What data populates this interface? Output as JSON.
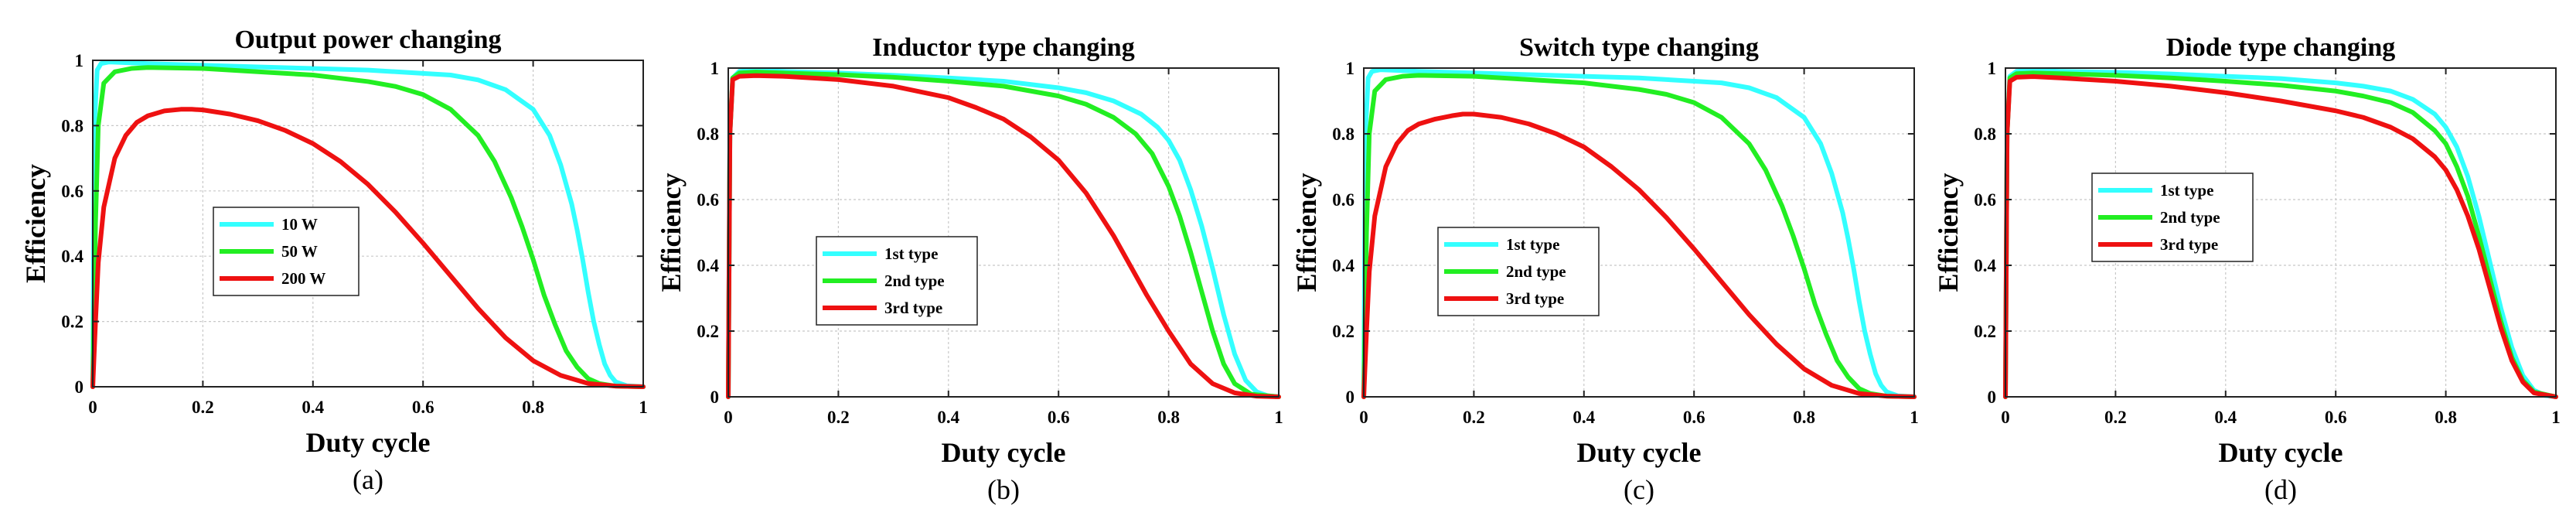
{
  "colors": {
    "cyan": "#33ffff",
    "green": "#22ee22",
    "red": "#ee1111",
    "axis": "#222222",
    "grid": "#c8c8c8"
  },
  "chart_data": [
    {
      "type": "line",
      "title": "Output power changing",
      "xlabel": "Duty cycle",
      "ylabel": "Efficiency",
      "caption": "(a)",
      "xlim": [
        0,
        1
      ],
      "ylim": [
        0,
        1
      ],
      "xticks": [
        0,
        0.2,
        0.4,
        0.6,
        0.8,
        1
      ],
      "xtick_labels": [
        "0",
        "0.2",
        "0.4",
        "0.6",
        "0.8",
        "1"
      ],
      "yticks": [
        0,
        0.2,
        0.4,
        0.6,
        0.8,
        1
      ],
      "ytick_labels": [
        "0",
        "0.2",
        "0.4",
        "0.6",
        "0.8",
        "1"
      ],
      "grid": true,
      "legend_position": "center-left",
      "series": [
        {
          "name": "10 W",
          "color": "cyan",
          "x": [
            0,
            0.003,
            0.008,
            0.015,
            0.03,
            0.06,
            0.1,
            0.2,
            0.3,
            0.4,
            0.5,
            0.6,
            0.65,
            0.7,
            0.75,
            0.8,
            0.83,
            0.85,
            0.87,
            0.88,
            0.89,
            0.9,
            0.91,
            0.92,
            0.93,
            0.94,
            0.95,
            0.97,
            1
          ],
          "y": [
            0,
            0.8,
            0.97,
            0.99,
            0.995,
            0.993,
            0.99,
            0.985,
            0.98,
            0.975,
            0.97,
            0.96,
            0.955,
            0.94,
            0.91,
            0.85,
            0.77,
            0.68,
            0.56,
            0.48,
            0.39,
            0.29,
            0.2,
            0.13,
            0.07,
            0.035,
            0.015,
            0.003,
            0
          ]
        },
        {
          "name": "50 W",
          "color": "green",
          "x": [
            0,
            0.005,
            0.01,
            0.02,
            0.04,
            0.07,
            0.1,
            0.2,
            0.3,
            0.4,
            0.5,
            0.55,
            0.6,
            0.65,
            0.7,
            0.73,
            0.76,
            0.78,
            0.8,
            0.82,
            0.84,
            0.86,
            0.88,
            0.9,
            0.92,
            0.95,
            1
          ],
          "y": [
            0,
            0.5,
            0.8,
            0.93,
            0.965,
            0.975,
            0.978,
            0.975,
            0.965,
            0.955,
            0.935,
            0.92,
            0.895,
            0.85,
            0.77,
            0.69,
            0.58,
            0.49,
            0.39,
            0.28,
            0.19,
            0.11,
            0.06,
            0.025,
            0.01,
            0.002,
            0
          ]
        },
        {
          "name": "200 W",
          "color": "red",
          "x": [
            0,
            0.005,
            0.01,
            0.02,
            0.04,
            0.06,
            0.08,
            0.1,
            0.13,
            0.16,
            0.18,
            0.2,
            0.25,
            0.3,
            0.35,
            0.4,
            0.45,
            0.5,
            0.55,
            0.6,
            0.65,
            0.7,
            0.75,
            0.8,
            0.85,
            0.9,
            0.95,
            1
          ],
          "y": [
            0,
            0.2,
            0.38,
            0.55,
            0.7,
            0.77,
            0.81,
            0.83,
            0.845,
            0.85,
            0.85,
            0.848,
            0.835,
            0.815,
            0.785,
            0.745,
            0.69,
            0.62,
            0.535,
            0.44,
            0.34,
            0.24,
            0.15,
            0.08,
            0.035,
            0.01,
            0.002,
            0
          ]
        }
      ]
    },
    {
      "type": "line",
      "title": "Inductor type changing",
      "xlabel": "Duty cycle",
      "ylabel": "Efficiency",
      "caption": "(b)",
      "xlim": [
        0,
        1
      ],
      "ylim": [
        0,
        1
      ],
      "xticks": [
        0,
        0.2,
        0.4,
        0.6,
        0.8,
        1
      ],
      "xtick_labels": [
        "0",
        "0.2",
        "0.4",
        "0.6",
        "0.8",
        "1"
      ],
      "yticks": [
        0,
        0.2,
        0.4,
        0.6,
        0.8,
        1
      ],
      "ytick_labels": [
        "0",
        "0.2",
        "0.4",
        "0.6",
        "0.8",
        "1"
      ],
      "grid": true,
      "legend_position": "center-left",
      "series": [
        {
          "name": "1st type",
          "color": "cyan",
          "x": [
            0,
            0.003,
            0.008,
            0.02,
            0.05,
            0.1,
            0.2,
            0.3,
            0.4,
            0.5,
            0.6,
            0.65,
            0.7,
            0.75,
            0.78,
            0.8,
            0.82,
            0.84,
            0.86,
            0.88,
            0.9,
            0.92,
            0.94,
            0.96,
            0.98,
            1
          ],
          "y": [
            0,
            0.8,
            0.97,
            0.99,
            0.993,
            0.99,
            0.985,
            0.978,
            0.97,
            0.96,
            0.94,
            0.925,
            0.9,
            0.86,
            0.82,
            0.78,
            0.72,
            0.63,
            0.52,
            0.39,
            0.25,
            0.13,
            0.05,
            0.015,
            0.003,
            0
          ]
        },
        {
          "name": "2nd type",
          "color": "green",
          "x": [
            0,
            0.003,
            0.008,
            0.02,
            0.05,
            0.1,
            0.2,
            0.3,
            0.4,
            0.5,
            0.6,
            0.65,
            0.7,
            0.74,
            0.77,
            0.8,
            0.82,
            0.84,
            0.86,
            0.88,
            0.9,
            0.92,
            0.95,
            1
          ],
          "y": [
            0,
            0.8,
            0.97,
            0.985,
            0.988,
            0.985,
            0.98,
            0.972,
            0.96,
            0.945,
            0.915,
            0.89,
            0.85,
            0.8,
            0.74,
            0.64,
            0.55,
            0.44,
            0.32,
            0.2,
            0.1,
            0.04,
            0.008,
            0
          ]
        },
        {
          "name": "3rd type",
          "color": "red",
          "x": [
            0,
            0.003,
            0.008,
            0.02,
            0.05,
            0.1,
            0.2,
            0.3,
            0.4,
            0.45,
            0.5,
            0.55,
            0.6,
            0.65,
            0.7,
            0.73,
            0.76,
            0.8,
            0.84,
            0.88,
            0.92,
            0.96,
            1
          ],
          "y": [
            0,
            0.8,
            0.965,
            0.975,
            0.977,
            0.975,
            0.965,
            0.945,
            0.91,
            0.88,
            0.845,
            0.79,
            0.72,
            0.62,
            0.49,
            0.4,
            0.31,
            0.2,
            0.1,
            0.04,
            0.012,
            0.002,
            0
          ]
        }
      ]
    },
    {
      "type": "line",
      "title": "Switch type changing",
      "xlabel": "Duty cycle",
      "ylabel": "Efficiency",
      "caption": "(c)",
      "xlim": [
        0,
        1
      ],
      "ylim": [
        0,
        1
      ],
      "xticks": [
        0,
        0.2,
        0.4,
        0.6,
        0.8,
        1
      ],
      "xtick_labels": [
        "0",
        "0.2",
        "0.4",
        "0.6",
        "0.8",
        "1"
      ],
      "yticks": [
        0,
        0.2,
        0.4,
        0.6,
        0.8,
        1
      ],
      "ytick_labels": [
        "0",
        "0.2",
        "0.4",
        "0.6",
        "0.8",
        "1"
      ],
      "grid": true,
      "legend_position": "center-left",
      "series": [
        {
          "name": "1st type",
          "color": "cyan",
          "x": [
            0,
            0.003,
            0.008,
            0.015,
            0.03,
            0.06,
            0.1,
            0.2,
            0.3,
            0.4,
            0.5,
            0.6,
            0.65,
            0.7,
            0.75,
            0.8,
            0.83,
            0.85,
            0.87,
            0.88,
            0.89,
            0.9,
            0.91,
            0.92,
            0.93,
            0.94,
            0.95,
            0.97,
            1
          ],
          "y": [
            0,
            0.8,
            0.97,
            0.99,
            0.995,
            0.993,
            0.99,
            0.985,
            0.98,
            0.975,
            0.97,
            0.96,
            0.955,
            0.94,
            0.91,
            0.85,
            0.77,
            0.68,
            0.56,
            0.48,
            0.39,
            0.29,
            0.2,
            0.13,
            0.07,
            0.035,
            0.015,
            0.003,
            0
          ]
        },
        {
          "name": "2nd type",
          "color": "green",
          "x": [
            0,
            0.005,
            0.01,
            0.02,
            0.04,
            0.07,
            0.1,
            0.2,
            0.3,
            0.4,
            0.5,
            0.55,
            0.6,
            0.65,
            0.7,
            0.73,
            0.76,
            0.78,
            0.8,
            0.82,
            0.84,
            0.86,
            0.88,
            0.9,
            0.92,
            0.95,
            1
          ],
          "y": [
            0,
            0.5,
            0.8,
            0.93,
            0.965,
            0.975,
            0.978,
            0.975,
            0.965,
            0.955,
            0.935,
            0.92,
            0.895,
            0.85,
            0.77,
            0.69,
            0.58,
            0.49,
            0.39,
            0.28,
            0.19,
            0.11,
            0.06,
            0.025,
            0.01,
            0.002,
            0
          ]
        },
        {
          "name": "3rd type",
          "color": "red",
          "x": [
            0,
            0.005,
            0.01,
            0.02,
            0.04,
            0.06,
            0.08,
            0.1,
            0.13,
            0.16,
            0.18,
            0.2,
            0.25,
            0.3,
            0.35,
            0.4,
            0.45,
            0.5,
            0.55,
            0.6,
            0.65,
            0.7,
            0.75,
            0.8,
            0.85,
            0.9,
            0.95,
            1
          ],
          "y": [
            0,
            0.2,
            0.38,
            0.55,
            0.7,
            0.77,
            0.81,
            0.83,
            0.845,
            0.855,
            0.86,
            0.86,
            0.85,
            0.83,
            0.8,
            0.76,
            0.7,
            0.63,
            0.545,
            0.45,
            0.35,
            0.25,
            0.16,
            0.085,
            0.035,
            0.01,
            0.002,
            0
          ]
        }
      ]
    },
    {
      "type": "line",
      "title": "Diode type changing",
      "xlabel": "Duty cycle",
      "ylabel": "Efficiency",
      "caption": "(d)",
      "xlim": [
        0,
        1
      ],
      "ylim": [
        0,
        1
      ],
      "xticks": [
        0,
        0.2,
        0.4,
        0.6,
        0.8,
        1
      ],
      "xtick_labels": [
        "0",
        "0.2",
        "0.4",
        "0.6",
        "0.8",
        "1"
      ],
      "yticks": [
        0,
        0.2,
        0.4,
        0.6,
        0.8,
        1
      ],
      "ytick_labels": [
        "0",
        "0.2",
        "0.4",
        "0.6",
        "0.8",
        "1"
      ],
      "grid": true,
      "legend_position": "center-left",
      "series": [
        {
          "name": "1st type",
          "color": "cyan",
          "x": [
            0,
            0.003,
            0.008,
            0.02,
            0.05,
            0.1,
            0.2,
            0.3,
            0.4,
            0.5,
            0.6,
            0.65,
            0.7,
            0.74,
            0.78,
            0.8,
            0.82,
            0.84,
            0.86,
            0.88,
            0.9,
            0.92,
            0.94,
            0.96,
            0.98,
            1
          ],
          "y": [
            0,
            0.8,
            0.975,
            0.99,
            0.993,
            0.99,
            0.987,
            0.982,
            0.975,
            0.968,
            0.955,
            0.945,
            0.93,
            0.905,
            0.86,
            0.82,
            0.76,
            0.67,
            0.55,
            0.41,
            0.27,
            0.15,
            0.065,
            0.02,
            0.004,
            0
          ]
        },
        {
          "name": "2nd type",
          "color": "green",
          "x": [
            0,
            0.003,
            0.008,
            0.02,
            0.05,
            0.1,
            0.2,
            0.3,
            0.4,
            0.5,
            0.6,
            0.65,
            0.7,
            0.74,
            0.78,
            0.8,
            0.82,
            0.84,
            0.86,
            0.88,
            0.9,
            0.92,
            0.94,
            0.96,
            1
          ],
          "y": [
            0,
            0.8,
            0.97,
            0.983,
            0.985,
            0.983,
            0.978,
            0.97,
            0.96,
            0.948,
            0.93,
            0.915,
            0.895,
            0.865,
            0.81,
            0.77,
            0.7,
            0.61,
            0.49,
            0.36,
            0.23,
            0.12,
            0.05,
            0.015,
            0
          ]
        },
        {
          "name": "3rd type",
          "color": "red",
          "x": [
            0,
            0.003,
            0.008,
            0.02,
            0.05,
            0.1,
            0.2,
            0.3,
            0.4,
            0.5,
            0.6,
            0.65,
            0.7,
            0.74,
            0.78,
            0.8,
            0.82,
            0.84,
            0.86,
            0.88,
            0.9,
            0.92,
            0.94,
            0.96,
            1
          ],
          "y": [
            0,
            0.8,
            0.96,
            0.972,
            0.974,
            0.97,
            0.96,
            0.945,
            0.925,
            0.9,
            0.87,
            0.85,
            0.82,
            0.785,
            0.73,
            0.69,
            0.63,
            0.55,
            0.45,
            0.33,
            0.21,
            0.11,
            0.045,
            0.012,
            0
          ]
        }
      ]
    }
  ]
}
